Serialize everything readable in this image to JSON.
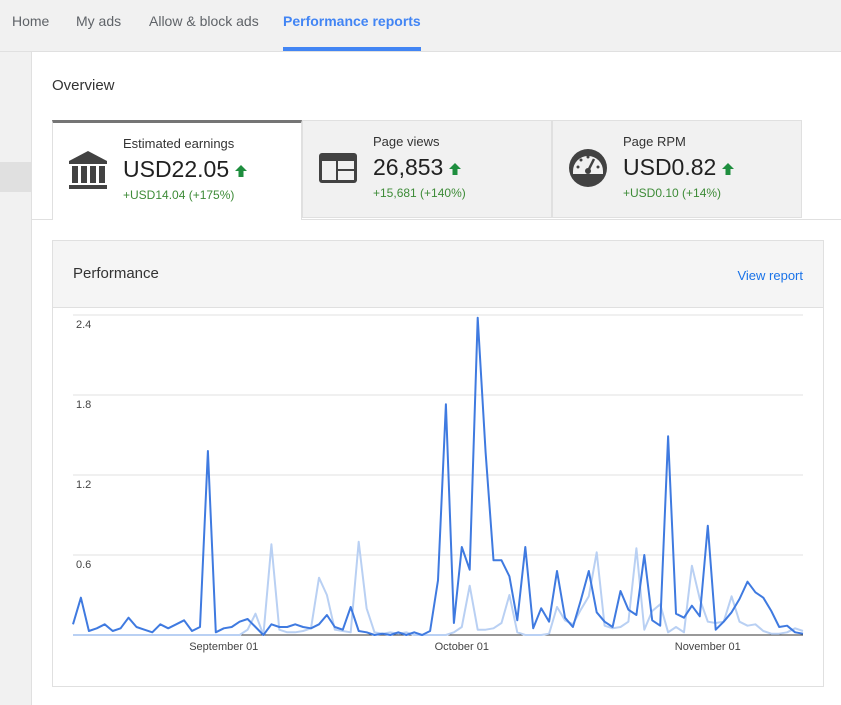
{
  "nav": {
    "tabs": [
      {
        "label": "Home",
        "active": false
      },
      {
        "label": "My ads",
        "active": false
      },
      {
        "label": "Allow & block ads",
        "active": false
      },
      {
        "label": "Performance reports",
        "active": true
      }
    ]
  },
  "overview": {
    "title": "Overview",
    "metrics": [
      {
        "label": "Estimated earnings",
        "value": "USD22.05",
        "change": "+USD14.04 (+175%)",
        "icon": "bank-icon",
        "active": true
      },
      {
        "label": "Page views",
        "value": "26,853",
        "change": "+15,681 (+140%)",
        "icon": "page-layout-icon",
        "active": false
      },
      {
        "label": "Page RPM",
        "value": "USD0.82",
        "change": "+USD0.10 (+14%)",
        "icon": "gauge-icon",
        "active": false
      }
    ],
    "trend_color": "#1e8e3e"
  },
  "performance": {
    "title": "Performance",
    "view_report_label": "View report",
    "chart_data": {
      "type": "line",
      "ylim": [
        0,
        2.4
      ],
      "y_ticks": [
        "2.4",
        "1.8",
        "1.2",
        "0.6"
      ],
      "x_tick_labels": [
        {
          "label": "September 01",
          "index": 19
        },
        {
          "label": "October 01",
          "index": 49
        },
        {
          "label": "November 01",
          "index": 80
        }
      ],
      "series": [
        {
          "color": "#3f7ae0",
          "values": [
            0.08,
            0.28,
            0.03,
            0.05,
            0.08,
            0.03,
            0.05,
            0.13,
            0.06,
            0.04,
            0.02,
            0.08,
            0.05,
            0.08,
            0.11,
            0.03,
            0.06,
            1.38,
            0.02,
            0.05,
            0.06,
            0.1,
            0.12,
            0.06,
            0.0,
            0.08,
            0.06,
            0.06,
            0.08,
            0.06,
            0.05,
            0.08,
            0.15,
            0.06,
            0.04,
            0.21,
            0.03,
            0.02,
            0.0,
            0.01,
            0.0,
            0.02,
            0.0,
            0.02,
            0.0,
            0.03,
            0.41,
            1.73,
            0.09,
            0.66,
            0.49,
            2.38,
            1.37,
            0.56,
            0.56,
            0.44,
            0.11,
            0.66,
            0.05,
            0.2,
            0.1,
            0.48,
            0.13,
            0.06,
            0.26,
            0.48,
            0.17,
            0.1,
            0.06,
            0.33,
            0.19,
            0.15,
            0.6,
            0.11,
            0.07,
            1.49,
            0.16,
            0.13,
            0.22,
            0.14,
            0.82,
            0.04,
            0.1,
            0.17,
            0.27,
            0.4,
            0.32,
            0.28,
            0.18,
            0.06,
            0.07,
            0.02,
            0.01
          ]
        },
        {
          "color": "#b9d0f3",
          "values": [
            0.0,
            0.0,
            0.0,
            0.0,
            0.0,
            0.0,
            0.0,
            0.0,
            0.0,
            0.0,
            0.0,
            0.0,
            0.0,
            0.0,
            0.0,
            0.0,
            0.0,
            0.0,
            0.0,
            0.0,
            0.0,
            0.0,
            0.04,
            0.16,
            0.0,
            0.68,
            0.04,
            0.02,
            0.02,
            0.03,
            0.05,
            0.43,
            0.3,
            0.04,
            0.03,
            0.02,
            0.7,
            0.2,
            0.02,
            0.01,
            0.02,
            0.01,
            0.02,
            0.0,
            0.0,
            0.0,
            0.0,
            0.0,
            0.02,
            0.06,
            0.37,
            0.04,
            0.04,
            0.05,
            0.09,
            0.3,
            0.02,
            0.0,
            0.0,
            0.0,
            0.01,
            0.21,
            0.11,
            0.08,
            0.19,
            0.29,
            0.62,
            0.07,
            0.05,
            0.06,
            0.1,
            0.65,
            0.04,
            0.18,
            0.23,
            0.02,
            0.06,
            0.02,
            0.52,
            0.27,
            0.1,
            0.09,
            0.1,
            0.29,
            0.1,
            0.07,
            0.08,
            0.03,
            0.01,
            0.01,
            0.02,
            0.05,
            0.03
          ]
        }
      ]
    }
  }
}
